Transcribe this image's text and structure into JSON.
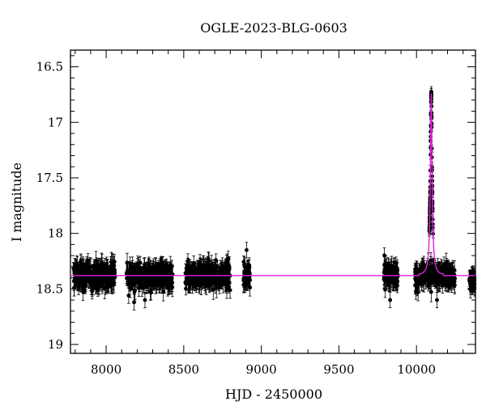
{
  "chart_data": {
    "type": "scatter",
    "title": "OGLE-2023-BLG-0603",
    "xlabel": "HJD - 2450000",
    "ylabel": "I magnitude",
    "xlim": [
      7770,
      10380
    ],
    "ylim": [
      19.08,
      16.35
    ],
    "y_inverted": true,
    "x_ticks": [
      8000,
      8500,
      9000,
      9500,
      10000
    ],
    "x_tick_labels": [
      "8000",
      "8500",
      "9000",
      "9500",
      "10000"
    ],
    "y_ticks": [
      16.5,
      17,
      17.5,
      18,
      18.5,
      19
    ],
    "y_tick_labels": [
      "16.5",
      "17",
      "17.5",
      "18",
      "18.5",
      "19"
    ],
    "grid": false,
    "baseline_magnitude": 18.38,
    "observing_seasons": [
      {
        "x_start": 7790,
        "x_end": 8060,
        "mag_median": 18.38,
        "mag_scatter": 0.1
      },
      {
        "x_start": 8130,
        "x_end": 8430,
        "mag_median": 18.38,
        "mag_scatter": 0.1
      },
      {
        "x_start": 8510,
        "x_end": 8800,
        "mag_median": 18.38,
        "mag_scatter": 0.1
      },
      {
        "x_start": 8885,
        "x_end": 8930,
        "mag_median": 18.37,
        "mag_scatter": 0.09
      },
      {
        "x_start": 9790,
        "x_end": 9880,
        "mag_median": 18.38,
        "mag_scatter": 0.1
      },
      {
        "x_start": 9990,
        "x_end": 10250,
        "mag_median": 18.38,
        "mag_scatter": 0.08
      },
      {
        "x_start": 10340,
        "x_end": 10375,
        "mag_median": 18.42,
        "mag_scatter": 0.06
      }
    ],
    "event": {
      "t0": 10095,
      "peak_magnitude": 16.74,
      "tE_days": 9,
      "model_color": "#e020e0"
    },
    "outliers": [
      {
        "x": 8145,
        "y": 18.56
      },
      {
        "x": 8180,
        "y": 18.62
      },
      {
        "x": 8250,
        "y": 18.6
      },
      {
        "x": 8905,
        "y": 18.15
      },
      {
        "x": 9830,
        "y": 18.6
      },
      {
        "x": 10132,
        "y": 18.6
      },
      {
        "x": 10360,
        "y": 18.48
      }
    ],
    "point_color": "#000000",
    "model_curve_color": "#e020e0"
  }
}
